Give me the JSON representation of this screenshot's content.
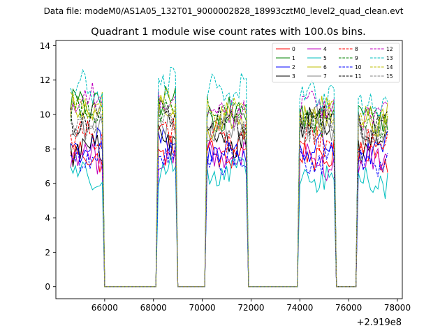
{
  "figure": {
    "suptitle": "Data file: modeM0/AS1A05_132T01_9000002828_18993cztM0_level2_quad_clean.evt"
  },
  "chart_data": {
    "type": "line",
    "title": "Quadrant 1 module wise count rates with 100.0s bins.",
    "xlabel": "",
    "ylabel": "",
    "x_offset_label": "+2.919e8",
    "xlim": [
      64000,
      78200
    ],
    "ylim": [
      -0.7,
      14.3
    ],
    "xticks": [
      66000,
      68000,
      70000,
      72000,
      74000,
      76000,
      78000
    ],
    "xtick_labels": [
      "66000",
      "68000",
      "70000",
      "72000",
      "74000",
      "76000",
      "78000"
    ],
    "yticks": [
      0,
      2,
      4,
      6,
      8,
      10,
      12,
      14
    ],
    "ytick_labels": [
      "0",
      "2",
      "4",
      "6",
      "8",
      "10",
      "12",
      "14"
    ],
    "bin_width": 100,
    "gti_segments": [
      {
        "start": 64600,
        "end": 65900
      },
      {
        "start": 68150,
        "end": 68900
      },
      {
        "start": 70150,
        "end": 71800
      },
      {
        "start": 73950,
        "end": 75450
      },
      {
        "start": 76350,
        "end": 77600
      }
    ],
    "series": [
      {
        "name": "0",
        "color": "#ff0000",
        "dash": "solid",
        "segment_levels": [
          7.6,
          7.9,
          7.6,
          7.5,
          7.7
        ]
      },
      {
        "name": "1",
        "color": "#008000",
        "dash": "solid",
        "segment_levels": [
          10.6,
          10.7,
          10.0,
          9.8,
          9.8
        ]
      },
      {
        "name": "2",
        "color": "#0000ff",
        "dash": "solid",
        "segment_levels": [
          8.2,
          8.1,
          7.9,
          8.1,
          7.9
        ]
      },
      {
        "name": "3",
        "color": "#000000",
        "dash": "solid",
        "segment_levels": [
          8.0,
          8.4,
          8.6,
          9.6,
          8.2
        ]
      },
      {
        "name": "4",
        "color": "#bf00bf",
        "dash": "solid",
        "segment_levels": [
          7.6,
          7.7,
          7.4,
          7.2,
          7.2
        ]
      },
      {
        "name": "5",
        "color": "#00bfbf",
        "dash": "solid",
        "segment_levels": [
          6.6,
          6.7,
          6.5,
          6.2,
          6.0
        ]
      },
      {
        "name": "6",
        "color": "#bfbf00",
        "dash": "solid",
        "segment_levels": [
          10.2,
          10.2,
          9.6,
          10.1,
          9.7
        ]
      },
      {
        "name": "7",
        "color": "#808080",
        "dash": "solid",
        "segment_levels": [
          9.1,
          9.6,
          9.3,
          9.4,
          8.9
        ]
      },
      {
        "name": "8",
        "color": "#ff0000",
        "dash": "dashed",
        "segment_levels": [
          8.8,
          9.3,
          8.6,
          8.6,
          8.5
        ]
      },
      {
        "name": "9",
        "color": "#008000",
        "dash": "dashed",
        "segment_levels": [
          10.2,
          10.6,
          10.2,
          9.8,
          9.6
        ]
      },
      {
        "name": "10",
        "color": "#0000ff",
        "dash": "dashed",
        "segment_levels": [
          7.3,
          7.6,
          7.3,
          7.2,
          7.0
        ]
      },
      {
        "name": "11",
        "color": "#000000",
        "dash": "dashed",
        "segment_levels": [
          9.7,
          10.0,
          9.6,
          9.7,
          9.3
        ]
      },
      {
        "name": "12",
        "color": "#bf00bf",
        "dash": "dashed",
        "segment_levels": [
          10.8,
          10.9,
          10.4,
          10.5,
          10.1
        ]
      },
      {
        "name": "13",
        "color": "#00bfbf",
        "dash": "dashed",
        "segment_levels": [
          11.5,
          12.0,
          11.3,
          11.2,
          10.6
        ]
      },
      {
        "name": "14",
        "color": "#bfbf00",
        "dash": "dashed",
        "segment_levels": [
          10.4,
          10.5,
          10.0,
          9.9,
          9.6
        ]
      },
      {
        "name": "15",
        "color": "#808080",
        "dash": "dashed",
        "segment_levels": [
          9.4,
          9.7,
          9.2,
          9.3,
          9.0
        ]
      }
    ],
    "legend_position": "top-right"
  }
}
